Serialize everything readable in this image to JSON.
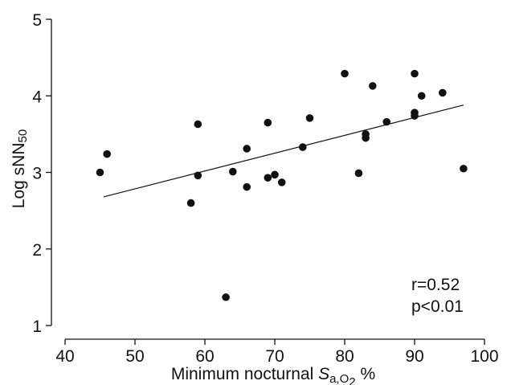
{
  "chart_data": {
    "type": "scatter",
    "xlabel": {
      "main": "Minimum nocturnal ",
      "italic": "S",
      "sub": "a,O",
      "sub2": "2",
      "unit": " %"
    },
    "ylabel": {
      "main": "Log sNN",
      "sub": "50"
    },
    "xlim": [
      40,
      100
    ],
    "ylim": [
      1,
      5
    ],
    "xticks": [
      40,
      50,
      60,
      70,
      80,
      90,
      100
    ],
    "yticks": [
      1,
      2,
      3,
      4,
      5
    ],
    "points": [
      {
        "x": 45,
        "y": 3.0
      },
      {
        "x": 46,
        "y": 3.24
      },
      {
        "x": 58,
        "y": 2.6
      },
      {
        "x": 59,
        "y": 3.63
      },
      {
        "x": 59,
        "y": 2.96
      },
      {
        "x": 63,
        "y": 1.37
      },
      {
        "x": 64,
        "y": 3.01
      },
      {
        "x": 66,
        "y": 3.31
      },
      {
        "x": 66,
        "y": 2.81
      },
      {
        "x": 69,
        "y": 3.65
      },
      {
        "x": 69,
        "y": 2.93
      },
      {
        "x": 70,
        "y": 2.97
      },
      {
        "x": 71,
        "y": 2.87
      },
      {
        "x": 74,
        "y": 3.33
      },
      {
        "x": 75,
        "y": 3.71
      },
      {
        "x": 80,
        "y": 4.29
      },
      {
        "x": 82,
        "y": 2.99
      },
      {
        "x": 83,
        "y": 3.5
      },
      {
        "x": 83,
        "y": 3.45
      },
      {
        "x": 84,
        "y": 4.13
      },
      {
        "x": 86,
        "y": 3.66
      },
      {
        "x": 90,
        "y": 4.29
      },
      {
        "x": 90,
        "y": 3.78
      },
      {
        "x": 90,
        "y": 3.74
      },
      {
        "x": 91,
        "y": 4.0
      },
      {
        "x": 94,
        "y": 4.04
      },
      {
        "x": 97,
        "y": 3.05
      }
    ],
    "regression_line": {
      "x": [
        45.5,
        97
      ],
      "y": [
        2.68,
        3.88
      ]
    },
    "annotations": [
      "r=0.52",
      "p<0.01"
    ],
    "grid": false,
    "colors": {
      "points": "#111111",
      "line": "#111111",
      "axis": "#111111"
    }
  }
}
